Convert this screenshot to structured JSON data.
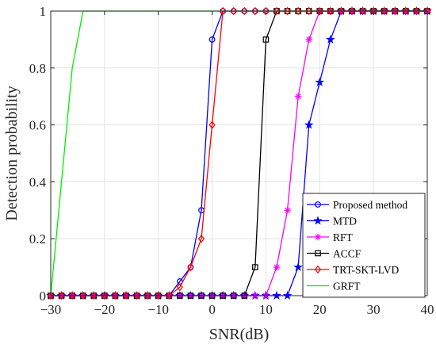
{
  "chart_data": {
    "type": "line",
    "xlabel": "SNR(dB)",
    "ylabel": "Detection probability",
    "xlim": [
      -30,
      40
    ],
    "ylim": [
      0,
      1
    ],
    "xticks": [
      -30,
      -20,
      -10,
      0,
      10,
      20,
      30,
      40
    ],
    "yticks": [
      0,
      0.2,
      0.4,
      0.6,
      0.8,
      1
    ],
    "xtick_labels": [
      "−30",
      "−20",
      "−10",
      "0",
      "10",
      "20",
      "30",
      "40"
    ],
    "ytick_labels": [
      "0",
      "0.2",
      "0.4",
      "0.6",
      "0.8",
      "1"
    ],
    "grid": true,
    "legend_position": "bottom-right",
    "series": [
      {
        "name": "Proposed method",
        "color": "#0000ff",
        "marker": "circle",
        "x": [
          -30,
          -28,
          -26,
          -24,
          -22,
          -20,
          -18,
          -16,
          -14,
          -12,
          -10,
          -8,
          -6,
          -4,
          -2,
          0,
          2,
          4,
          6,
          8,
          10,
          12,
          14,
          16,
          18,
          20,
          22,
          24,
          26,
          28,
          30,
          32,
          34,
          36,
          38,
          40
        ],
        "y": [
          0,
          0,
          0,
          0,
          0,
          0,
          0,
          0,
          0,
          0,
          0,
          0,
          0.05,
          0.1,
          0.3,
          0.9,
          1,
          1,
          1,
          1,
          1,
          1,
          1,
          1,
          1,
          1,
          1,
          1,
          1,
          1,
          1,
          1,
          1,
          1,
          1,
          1
        ]
      },
      {
        "name": "MTD",
        "color": "#0000ff",
        "marker": "star",
        "x": [
          -30,
          -28,
          -26,
          -24,
          -22,
          -20,
          -18,
          -16,
          -14,
          -12,
          -10,
          -8,
          -6,
          -4,
          -2,
          0,
          2,
          4,
          6,
          8,
          10,
          12,
          14,
          16,
          18,
          20,
          22,
          24,
          26,
          28,
          30,
          32,
          34,
          36,
          38,
          40
        ],
        "y": [
          0,
          0,
          0,
          0,
          0,
          0,
          0,
          0,
          0,
          0,
          0,
          0,
          0,
          0,
          0,
          0,
          0,
          0,
          0,
          0,
          0,
          0,
          0,
          0.1,
          0.6,
          0.75,
          0.9,
          1,
          1,
          1,
          1,
          1,
          1,
          1,
          1,
          1
        ]
      },
      {
        "name": "RFT",
        "color": "#ff00ff",
        "marker": "asterisk",
        "x": [
          -30,
          -28,
          -26,
          -24,
          -22,
          -20,
          -18,
          -16,
          -14,
          -12,
          -10,
          -8,
          -6,
          -4,
          -2,
          0,
          2,
          4,
          6,
          8,
          10,
          12,
          14,
          16,
          18,
          20,
          22,
          24,
          26,
          28,
          30,
          32,
          34,
          36,
          38,
          40
        ],
        "y": [
          0,
          0,
          0,
          0,
          0,
          0,
          0,
          0,
          0,
          0,
          0,
          0,
          0,
          0,
          0,
          0,
          0,
          0,
          0,
          0,
          0,
          0.1,
          0.3,
          0.7,
          0.9,
          1,
          1,
          1,
          1,
          1,
          1,
          1,
          1,
          1,
          1,
          1
        ]
      },
      {
        "name": "ACCF",
        "color": "#000000",
        "marker": "square",
        "x": [
          -30,
          -28,
          -26,
          -24,
          -22,
          -20,
          -18,
          -16,
          -14,
          -12,
          -10,
          -8,
          -6,
          -4,
          -2,
          0,
          2,
          4,
          6,
          8,
          10,
          12,
          14,
          16,
          18,
          20,
          22,
          24,
          26,
          28,
          30,
          32,
          34,
          36,
          38,
          40
        ],
        "y": [
          0,
          0,
          0,
          0,
          0,
          0,
          0,
          0,
          0,
          0,
          0,
          0,
          0,
          0,
          0,
          0,
          0,
          0,
          0,
          0.1,
          0.9,
          1,
          1,
          1,
          1,
          1,
          1,
          1,
          1,
          1,
          1,
          1,
          1,
          1,
          1,
          1
        ]
      },
      {
        "name": "TRT-SKT-LVD",
        "color": "#ff0000",
        "marker": "diamond",
        "x": [
          -30,
          -28,
          -26,
          -24,
          -22,
          -20,
          -18,
          -16,
          -14,
          -12,
          -10,
          -8,
          -6,
          -4,
          -2,
          0,
          2,
          4,
          6,
          8,
          10,
          12,
          14,
          16,
          18,
          20,
          22,
          24,
          26,
          28,
          30,
          32,
          34,
          36,
          38,
          40
        ],
        "y": [
          0,
          0,
          0,
          0,
          0,
          0,
          0,
          0,
          0,
          0,
          0,
          0,
          0.03,
          0.1,
          0.2,
          0.6,
          1,
          1,
          1,
          1,
          1,
          1,
          1,
          1,
          1,
          1,
          1,
          1,
          1,
          1,
          1,
          1,
          1,
          1,
          1,
          1
        ]
      },
      {
        "name": "GRFT",
        "color": "#00ee00",
        "marker": "none",
        "x": [
          -30,
          -28,
          -26,
          -24,
          -22,
          -20,
          -18,
          -16,
          -14,
          -12,
          -10,
          -8,
          -6,
          -4,
          -2,
          0,
          2,
          4,
          6,
          8,
          10,
          12,
          14,
          16,
          18,
          20,
          22,
          24,
          26,
          28,
          30,
          32,
          34,
          36,
          38,
          40
        ],
        "y": [
          0,
          0.4,
          0.8,
          1,
          1,
          1,
          1,
          1,
          1,
          1,
          1,
          1,
          1,
          1,
          1,
          1,
          1,
          1,
          1,
          1,
          1,
          1,
          1,
          1,
          1,
          1,
          1,
          1,
          1,
          1,
          1,
          1,
          1,
          1,
          1,
          1
        ]
      }
    ]
  }
}
